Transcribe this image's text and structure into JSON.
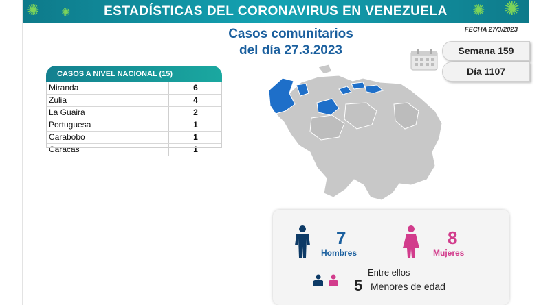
{
  "header": {
    "title": "ESTADÍSTICAS DEL CORONAVIRUS EN VENEZUELA",
    "fecha": "FECHA 27/3/2023"
  },
  "subtitle": {
    "line1": "Casos comunitarios",
    "line2": "del día 27.3.2023"
  },
  "counters": {
    "semana": "Semana 159",
    "dia": "Día 1107"
  },
  "table": {
    "header": "CASOS A NIVEL NACIONAL  (15)",
    "rows": [
      {
        "name": "Miranda",
        "value": "6"
      },
      {
        "name": "Zulia",
        "value": "4"
      },
      {
        "name": "La Guaira",
        "value": "2"
      },
      {
        "name": "Portuguesa",
        "value": "1"
      },
      {
        "name": "Carabobo",
        "value": "1"
      },
      {
        "name": "Caracas",
        "value": "1"
      }
    ]
  },
  "gender": {
    "men_count": "7",
    "men_label": "Hombres",
    "women_count": "8",
    "women_label": "Mujeres",
    "minors_intro": "Entre ellos",
    "minors_count": "5",
    "minors_label": "Menores de edad"
  },
  "colors": {
    "teal": "#13808f",
    "blue": "#1a5f9e",
    "pink": "#d23c8c",
    "map_gray": "#c8c8c8",
    "map_highlight": "#1e6fc9"
  }
}
